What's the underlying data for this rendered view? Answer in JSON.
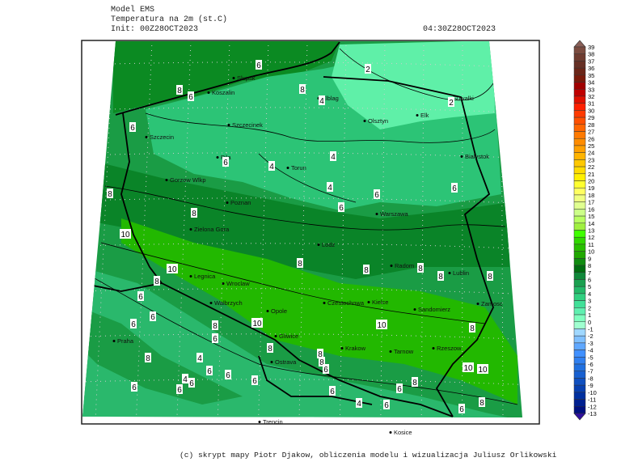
{
  "header": {
    "model": "Model EMS",
    "variable": "Temperatura na 2m (st.C)",
    "init": "Init: 00Z28OCT2023",
    "valid_time": "04:30Z28OCT2023"
  },
  "footer": "(c) skrypt mapy Piotr Djakow, obliczenia modelu i wizualizacja Juliusz Orlikowski",
  "map": {
    "cities": [
      "Slupsk",
      "Koszalin",
      "Szczecin",
      "Szczecinek",
      "Elblag",
      "Olsztyn",
      "Elk",
      "Suwalki",
      "Bialystok",
      "Torun",
      "Pila",
      "Gorzow Wlkp",
      "Poznan",
      "Warszawa",
      "Zielona Gora",
      "Legnica",
      "Wroclaw",
      "Lodz",
      "Radom",
      "Lublin",
      "Walbrzych",
      "Opole",
      "Czestochowa",
      "Kielce",
      "Sandomierz",
      "Zamosc",
      "Gliwice",
      "Krakow",
      "Tarnow",
      "Rzeszow",
      "Praha",
      "Ostrava",
      "Kosice",
      "Trencin"
    ],
    "contour_labels": [
      "6",
      "8",
      "6",
      "6",
      "8",
      "4",
      "2",
      "2",
      "4",
      "4",
      "6",
      "8",
      "4",
      "6",
      "6",
      "6",
      "8",
      "10",
      "8",
      "10",
      "8",
      "8",
      "8",
      "8",
      "8",
      "6",
      "6",
      "6",
      "8",
      "10",
      "10",
      "8",
      "6",
      "4",
      "8",
      "8",
      "8",
      "6",
      "6",
      "8",
      "6",
      "4",
      "6",
      "6",
      "6",
      "6",
      "6",
      "4",
      "6",
      "6",
      "8",
      "10",
      "10",
      "8",
      "6"
    ],
    "colors": {
      "sea": "#0b8a22",
      "cold_north": "#5ff0a8",
      "mid_north": "#2cc476",
      "central": "#1a9c45",
      "dark_central": "#0a8428",
      "warm_south": "#22b800",
      "mountains": "#2ab86c",
      "borders": "#000000"
    }
  },
  "legend": {
    "labels": [
      "39",
      "38",
      "37",
      "36",
      "35",
      "34",
      "33",
      "32",
      "31",
      "30",
      "29",
      "28",
      "27",
      "26",
      "25",
      "24",
      "23",
      "22",
      "21",
      "20",
      "19",
      "18",
      "17",
      "16",
      "15",
      "14",
      "13",
      "12",
      "11",
      "10",
      "9",
      "8",
      "7",
      "6",
      "5",
      "4",
      "3",
      "2",
      "1",
      "0",
      "-1",
      "-2",
      "-3",
      "-4",
      "-5",
      "-6",
      "-7",
      "-8",
      "-9",
      "-10",
      "-11",
      "-12",
      "-13"
    ],
    "top_extension_color": "#8a6058",
    "bottom_extension_color": "#3010a0",
    "colors": [
      "#7b4c40",
      "#6e3c30",
      "#663025",
      "#6b2518",
      "#7a1a0a",
      "#a00000",
      "#c00000",
      "#e01000",
      "#ff2000",
      "#ff3a00",
      "#ff5000",
      "#ff6600",
      "#ff7a00",
      "#ff8c00",
      "#ffa000",
      "#ffb400",
      "#ffc800",
      "#ffdc00",
      "#fff000",
      "#ffff30",
      "#ffff60",
      "#f0ff80",
      "#e0ff90",
      "#ccff88",
      "#b8ff60",
      "#a0f040",
      "#40ff00",
      "#30d800",
      "#28c000",
      "#20a800",
      "#108c10",
      "#006e10",
      "#10883a",
      "#1aa050",
      "#22b868",
      "#30d080",
      "#40e098",
      "#60f0b0",
      "#80ffc0",
      "#a0ffd0",
      "#a0d8ff",
      "#80c0ff",
      "#60a8ff",
      "#4090ff",
      "#3080f0",
      "#2070e0",
      "#1860d0",
      "#1050c0",
      "#0840b0",
      "#0030a0",
      "#002090",
      "#001080"
    ]
  }
}
